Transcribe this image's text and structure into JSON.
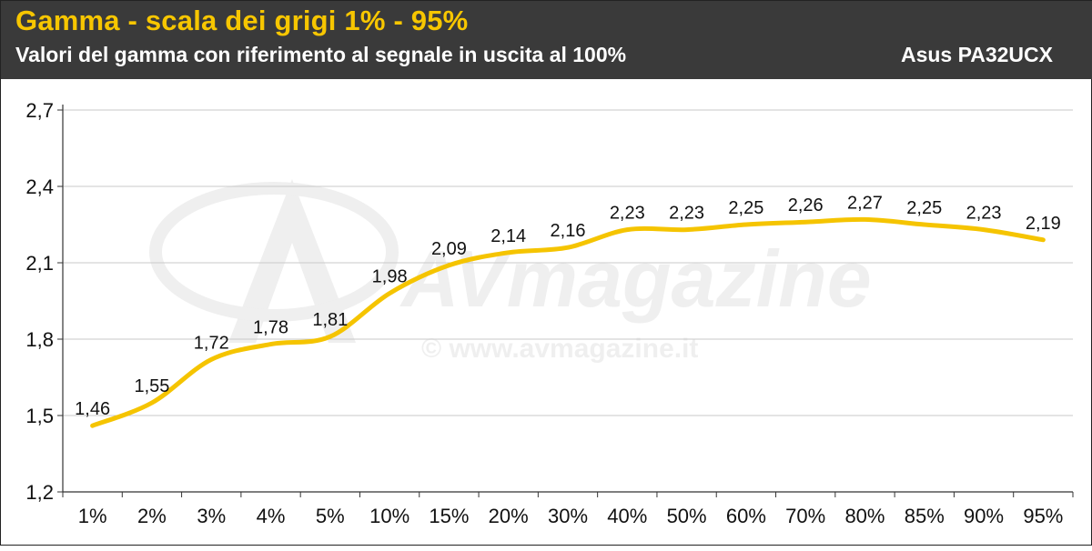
{
  "header": {
    "title": "Gamma - scala dei grigi 1% - 95%",
    "subtitle": "Valori del gamma con riferimento al segnale in uscita al 100%",
    "device": "Asus PA32UCX"
  },
  "watermark": {
    "brand": "AVmagazine",
    "url": "© www.avmagazine.it"
  },
  "colors": {
    "header_bg": "#3a3a3a",
    "title": "#f7c600",
    "line": "#f5c400",
    "grid": "#c8c8c8"
  },
  "chart_data": {
    "type": "line",
    "title": "Gamma - scala dei grigi 1% - 95%",
    "subtitle": "Valori del gamma con riferimento al segnale in uscita al 100%",
    "categories": [
      "1%",
      "2%",
      "3%",
      "4%",
      "5%",
      "10%",
      "15%",
      "20%",
      "30%",
      "40%",
      "50%",
      "60%",
      "70%",
      "80%",
      "85%",
      "90%",
      "95%"
    ],
    "series": [
      {
        "name": "Asus PA32UCX",
        "values": [
          1.46,
          1.55,
          1.72,
          1.78,
          1.81,
          1.98,
          2.09,
          2.14,
          2.16,
          2.23,
          2.23,
          2.25,
          2.26,
          2.27,
          2.25,
          2.23,
          2.19
        ],
        "labels": [
          "1,46",
          "1,55",
          "1,72",
          "1,78",
          "1,81",
          "1,98",
          "2,09",
          "2,14",
          "2,16",
          "2,23",
          "2,23",
          "2,25",
          "2,26",
          "2,27",
          "2,25",
          "2,23",
          "2,19"
        ]
      }
    ],
    "ylim": [
      1.2,
      2.7
    ],
    "yticks": [
      1.2,
      1.5,
      1.8,
      2.1,
      2.4,
      2.7
    ],
    "ytick_labels": [
      "1,2",
      "1,5",
      "1,8",
      "2,1",
      "2,4",
      "2,7"
    ],
    "grid": true,
    "legend": "none",
    "xlabel": "",
    "ylabel": ""
  }
}
